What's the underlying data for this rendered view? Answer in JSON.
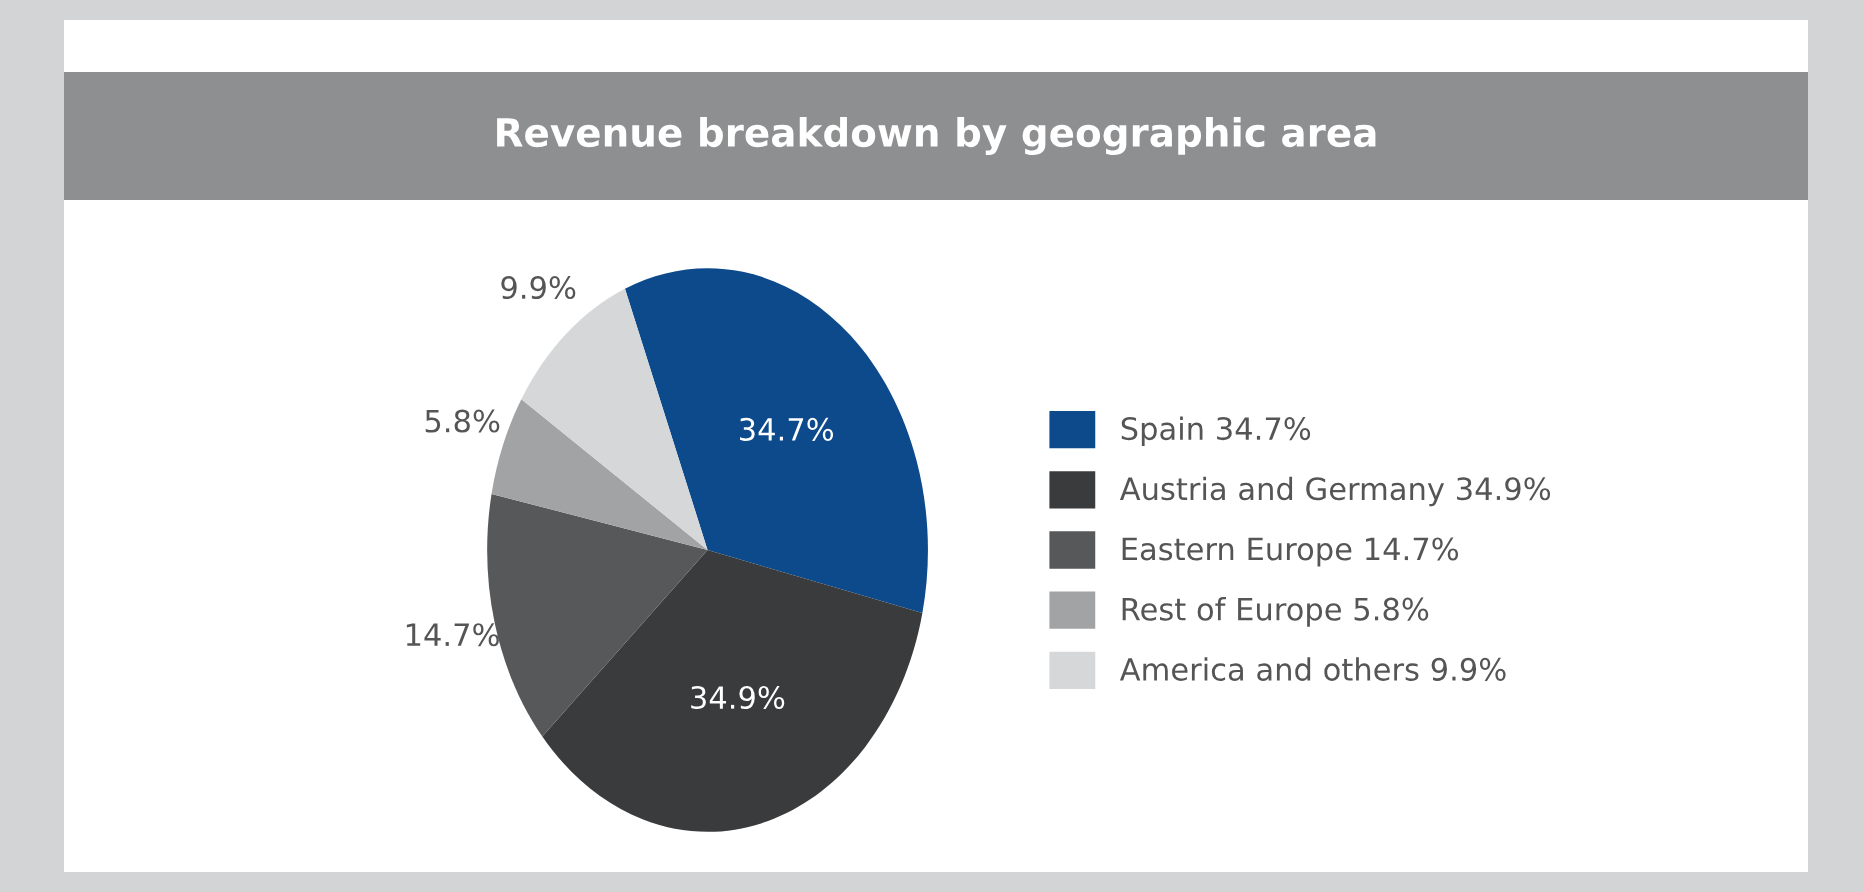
{
  "chart_data": {
    "type": "pie",
    "title": "Revenue breakdown by geographic area",
    "categories": [
      "Spain",
      "Austria and Germany",
      "Eastern Europe",
      "Rest of Europe",
      "America and others"
    ],
    "values": [
      34.7,
      34.9,
      14.7,
      5.8,
      9.9
    ],
    "value_labels": [
      "34.7%",
      "34.9%",
      "14.7%",
      "5.8%",
      "9.9%"
    ],
    "colors": [
      "#0d4a8c",
      "#3a3b3c",
      "#56585a",
      "#a2a3a5",
      "#d5d7d9"
    ],
    "legend": "right"
  }
}
